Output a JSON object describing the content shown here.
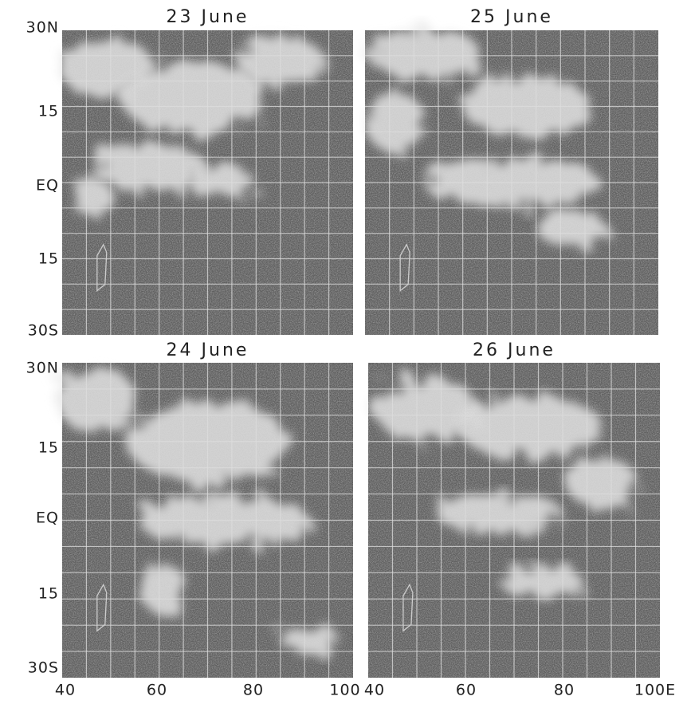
{
  "panels": [
    {
      "title": "23 June"
    },
    {
      "title": "25 June"
    },
    {
      "title": "24 June"
    },
    {
      "title": "26 June"
    }
  ],
  "lat_labels": {
    "top": [
      "30N",
      "15",
      "EQ",
      "15",
      "30S"
    ],
    "bottom": [
      "30N",
      "15",
      "EQ",
      "15",
      "30S"
    ]
  },
  "lon_labels": {
    "left": [
      "40",
      "60",
      "80",
      "100"
    ],
    "right": [
      "40",
      "60",
      "80",
      "100E"
    ]
  }
}
